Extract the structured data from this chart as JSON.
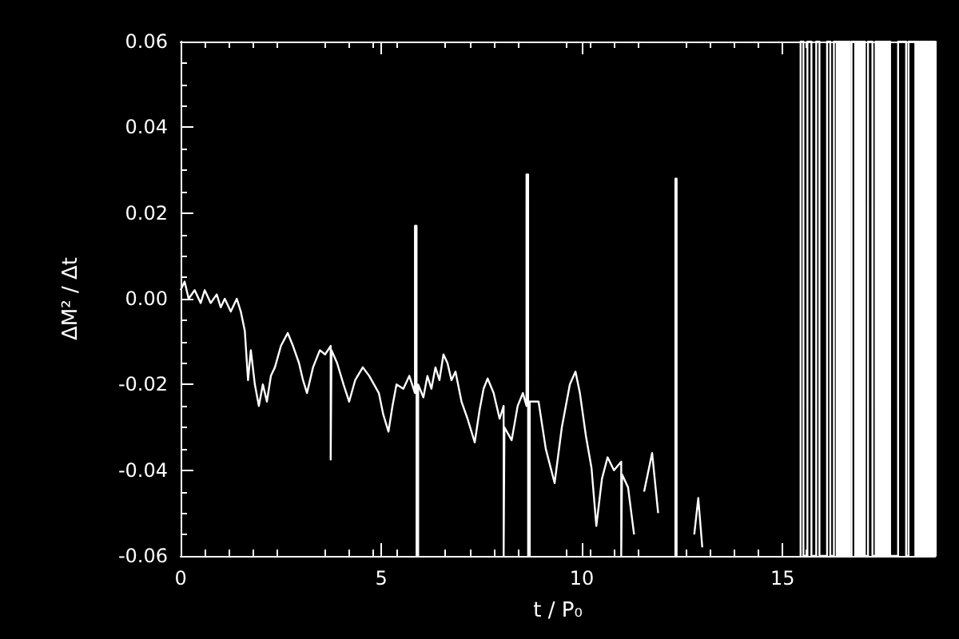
{
  "chart_data": {
    "type": "line",
    "xlabel": "t / P₀",
    "ylabel": "ΔM² / Δt",
    "xlim": [
      0,
      18.8
    ],
    "ylim": [
      -0.06,
      0.06
    ],
    "xticks": [
      0,
      5,
      10,
      15
    ],
    "yticks": [
      {
        "value": -0.06,
        "label": "-0.06"
      },
      {
        "value": -0.04,
        "label": "-0.04"
      },
      {
        "value": -0.02,
        "label": "-0.02"
      },
      {
        "value": 0,
        "label": "0.00"
      },
      {
        "value": 0.02,
        "label": "0.02"
      },
      {
        "value": 0.04,
        "label": "0.04"
      },
      {
        "value": 0.06,
        "label": "0.06"
      }
    ],
    "series": [
      {
        "color": "#ffffff",
        "x": [
          0,
          0.1,
          0.2,
          0.35,
          0.5,
          0.6,
          0.75,
          0.9,
          1.0,
          1.1,
          1.25,
          1.4,
          1.5,
          1.6,
          1.68,
          1.75,
          1.85,
          1.95,
          2.05,
          2.15,
          2.25,
          2.35,
          2.5,
          2.67,
          2.8,
          2.95,
          3.05,
          3.15,
          3.3,
          3.47,
          3.6,
          3.74,
          3.74,
          3.76,
          3.9,
          4.06,
          4.2,
          4.35,
          4.54,
          4.7,
          4.94,
          5.05,
          5.18,
          5.28,
          5.38,
          5.55,
          5.7,
          5.84,
          5.84,
          5.88,
          5.88,
          5.92,
          5.92,
          6.05,
          6.15,
          6.25,
          6.35,
          6.45,
          6.55,
          6.65,
          6.75,
          6.85,
          7.0,
          7.15,
          7.33,
          7.45,
          7.55,
          7.65,
          7.8,
          7.95,
          8.05,
          8.05,
          8.07,
          8.07,
          8.25,
          8.4,
          8.53,
          8.62,
          8.62,
          8.66,
          8.66,
          8.7,
          8.7,
          8.92,
          9.1,
          9.32,
          9.5,
          9.7,
          9.84,
          9.95,
          10.1,
          10.24,
          10.36,
          10.5,
          10.64,
          10.8,
          10.98,
          10.98,
          11.0,
          11.0,
          11.15,
          11.3,
          11.43,
          11.55,
          11.75,
          11.9,
          12.1,
          12.33,
          12.33,
          12.36,
          12.36,
          12.6,
          12.8,
          12.9,
          13.0
        ],
        "values": [
          0.002,
          0.004,
          0.0,
          0.002,
          -0.001,
          0.002,
          -0.001,
          0.001,
          -0.002,
          0.0,
          -0.003,
          0.0,
          -0.003,
          -0.0075,
          -0.019,
          -0.012,
          -0.02,
          -0.025,
          -0.02,
          -0.024,
          -0.018,
          -0.016,
          -0.011,
          -0.008,
          -0.011,
          -0.015,
          -0.019,
          -0.022,
          -0.016,
          -0.012,
          -0.013,
          -0.011,
          -0.0375,
          -0.012,
          -0.015,
          -0.02,
          -0.024,
          -0.019,
          -0.016,
          -0.018,
          -0.022,
          -0.027,
          -0.031,
          -0.025,
          -0.02,
          -0.021,
          -0.018,
          -0.022,
          0.017,
          0.017,
          -0.06,
          -0.06,
          -0.02,
          -0.023,
          -0.018,
          -0.021,
          -0.016,
          -0.019,
          -0.013,
          -0.015,
          -0.019,
          -0.017,
          -0.024,
          -0.028,
          -0.0335,
          -0.026,
          -0.021,
          -0.0186,
          -0.022,
          -0.028,
          -0.025,
          -0.06,
          -0.06,
          -0.03,
          -0.033,
          -0.025,
          -0.022,
          -0.025,
          0.029,
          0.029,
          -0.06,
          -0.06,
          -0.024,
          -0.024,
          -0.035,
          -0.043,
          -0.03,
          -0.02,
          -0.017,
          -0.022,
          -0.032,
          -0.0395,
          -0.053,
          -0.042,
          -0.037,
          -0.04,
          -0.038,
          -0.06,
          -0.06,
          -0.041,
          -0.044,
          -0.055,
          null,
          -0.045,
          -0.036,
          -0.05,
          null,
          -0.06,
          0.028,
          0.028,
          -0.06,
          null,
          -0.055,
          -0.0465,
          -0.058
        ]
      },
      {
        "color": "#ffffff",
        "x": [
          15.45,
          15.45,
          15.52,
          15.52,
          15.62,
          15.62,
          15.72,
          15.72,
          15.84,
          15.84,
          15.92,
          15.92,
          16.11,
          16.11,
          16.19,
          16.19,
          16.28,
          16.28,
          16.35,
          16.35,
          16.39,
          16.39,
          16.43,
          16.43,
          16.47,
          16.47,
          16.51,
          16.51,
          16.55,
          16.55,
          16.59,
          16.59,
          16.63,
          16.63,
          16.67,
          16.67,
          16.72,
          16.72,
          16.81,
          16.81,
          16.85,
          16.85,
          16.89,
          16.89,
          16.93,
          16.93,
          16.97,
          16.97,
          17.01,
          17.01,
          17.05,
          17.05,
          17.13,
          17.13,
          17.24,
          17.24,
          17.32,
          17.32,
          17.36,
          17.36,
          17.4,
          17.4,
          17.44,
          17.44,
          17.48,
          17.48,
          17.52,
          17.52,
          17.56,
          17.56,
          17.6,
          17.6,
          17.64,
          17.64,
          17.68,
          17.68,
          17.88,
          17.88,
          18.08,
          18.08,
          18.14,
          18.14,
          18.31,
          18.31,
          18.35,
          18.35,
          18.39,
          18.39,
          18.43,
          18.43,
          18.47,
          18.47,
          18.51,
          18.51,
          18.55,
          18.55,
          18.59,
          18.59,
          18.63,
          18.63,
          18.67,
          18.67,
          18.71,
          18.71,
          18.75,
          18.75,
          18.79,
          18.79
        ],
        "values": [
          -0.06,
          0.06,
          0.06,
          -0.06,
          -0.06,
          0.06,
          0.06,
          -0.06,
          -0.06,
          0.06,
          0.06,
          -0.06,
          -0.06,
          0.06,
          0.06,
          -0.06,
          -0.06,
          0.06,
          0.06,
          -0.06,
          -0.06,
          0.06,
          0.06,
          -0.06,
          -0.06,
          0.06,
          0.06,
          -0.06,
          -0.06,
          0.06,
          0.06,
          -0.06,
          -0.06,
          0.06,
          0.06,
          -0.06,
          -0.06,
          0.06,
          0.06,
          -0.06,
          -0.06,
          0.06,
          0.06,
          -0.06,
          -0.06,
          0.06,
          0.06,
          -0.06,
          -0.06,
          0.06,
          0.06,
          -0.06,
          -0.06,
          0.06,
          0.06,
          -0.06,
          -0.06,
          0.06,
          0.06,
          -0.06,
          -0.06,
          0.06,
          0.06,
          -0.06,
          -0.06,
          0.06,
          0.06,
          -0.06,
          -0.06,
          0.06,
          0.06,
          -0.06,
          -0.06,
          0.06,
          0.06,
          -0.06,
          -0.06,
          0.06,
          0.06,
          -0.06,
          -0.06,
          0.06,
          0.06,
          -0.06,
          -0.06,
          0.06,
          0.06,
          -0.06,
          -0.06,
          0.06,
          0.06,
          -0.06,
          -0.06,
          0.06,
          0.06,
          -0.06,
          -0.06,
          0.06,
          0.06,
          -0.06,
          -0.06,
          0.06,
          0.06,
          -0.06,
          -0.06,
          0.06,
          0.06,
          -0.06
        ]
      }
    ]
  }
}
